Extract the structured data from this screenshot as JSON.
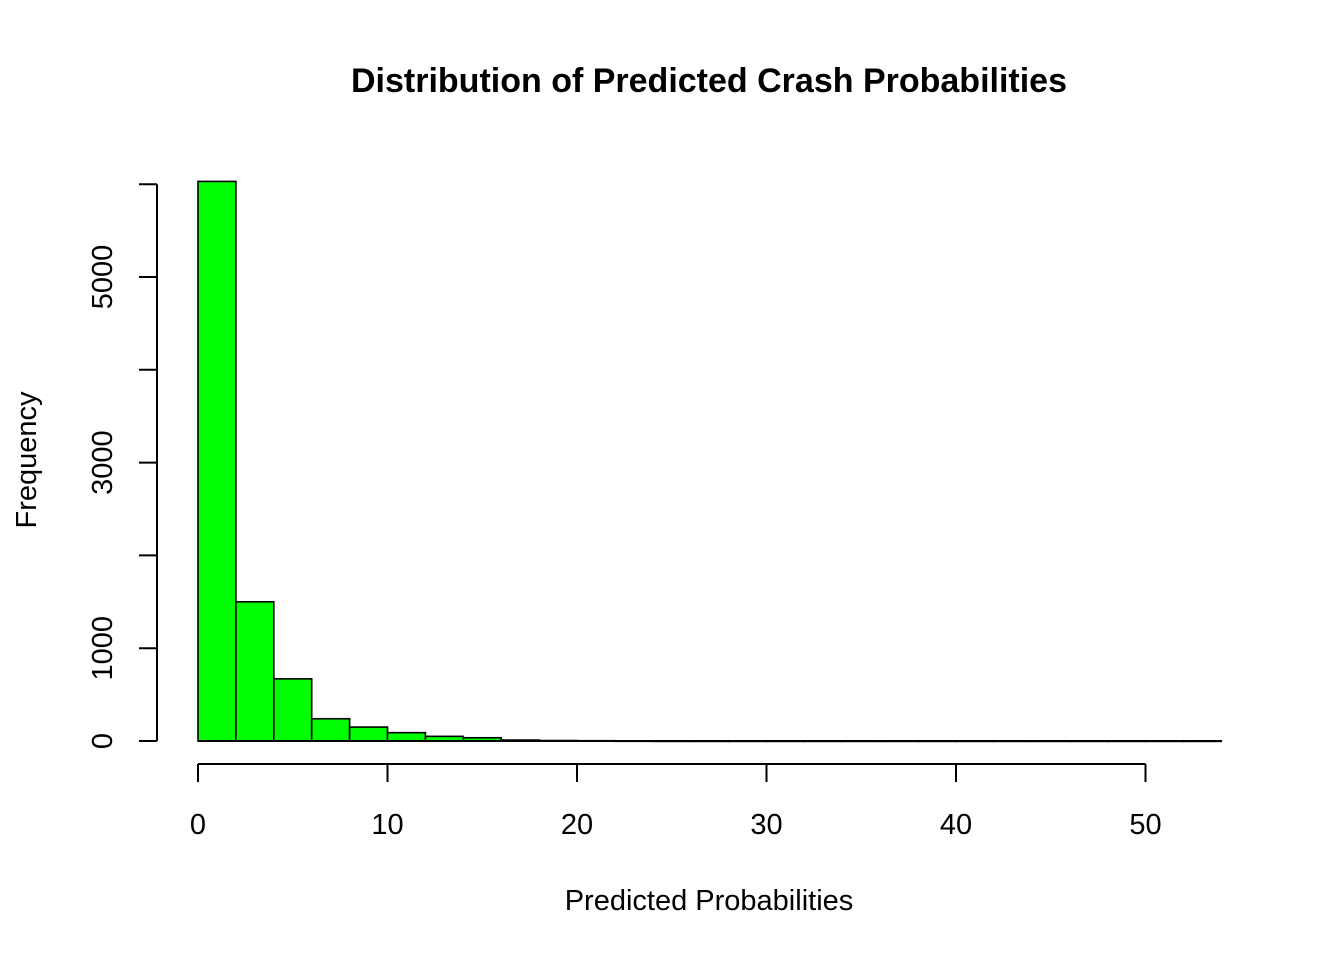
{
  "chart_data": {
    "type": "bar",
    "title": "Distribution of Predicted Crash Probabilities",
    "xlabel": "Predicted Probabilities",
    "ylabel": "Frequency",
    "bar_color": "#00ff00",
    "bin_edges": [
      0,
      2,
      4,
      6,
      8,
      10,
      12,
      14,
      16,
      18,
      20,
      22,
      24,
      26,
      28,
      30,
      32,
      34,
      36,
      38,
      40,
      42,
      44,
      46,
      48,
      50,
      52,
      54
    ],
    "values": [
      6030,
      1500,
      670,
      240,
      150,
      90,
      50,
      35,
      10,
      5,
      3,
      2,
      1,
      1,
      1,
      1,
      1,
      1,
      1,
      1,
      1,
      1,
      1,
      1,
      1,
      1,
      1
    ],
    "xlim": [
      0,
      54
    ],
    "ylim": [
      0,
      6000
    ],
    "x_ticks": [
      0,
      10,
      20,
      30,
      40,
      50
    ],
    "y_ticks": [
      0,
      1000,
      2000,
      3000,
      4000,
      5000,
      6000
    ],
    "y_tick_labels": [
      "0",
      "1000",
      "",
      "3000",
      "",
      "5000",
      ""
    ],
    "x_tick_labels": [
      "0",
      "10",
      "20",
      "30",
      "40",
      "50"
    ],
    "grid": false,
    "legend": "none"
  }
}
